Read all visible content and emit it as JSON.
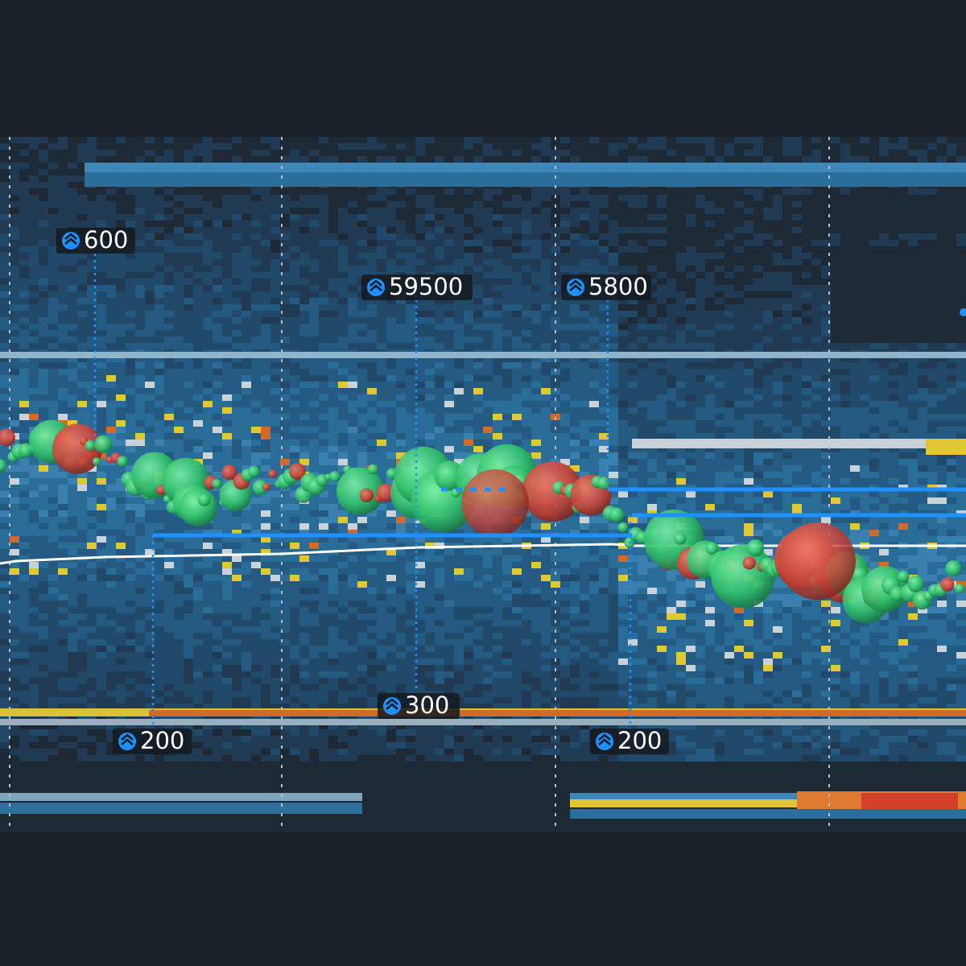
{
  "markers": [
    {
      "label": 600
    },
    {
      "label": 59500
    },
    {
      "label": 5800
    },
    {
      "label": 300
    },
    {
      "label": 200
    },
    {
      "label": 200
    }
  ]
}
